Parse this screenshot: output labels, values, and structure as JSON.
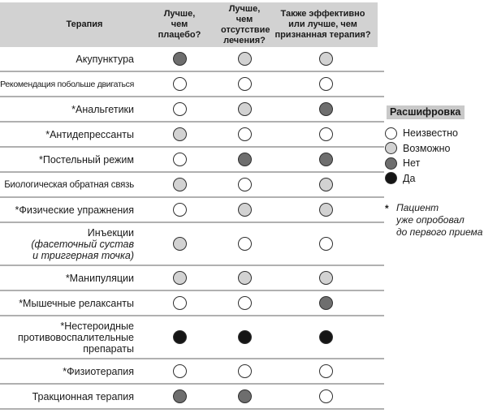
{
  "header": {
    "therapy": "Терапия",
    "col_placebo": "Лучше,\nчем\nплацебо?",
    "col_no_treatment": "Лучше, чем\nотсутствие\nлечения?",
    "col_recognized": "Также эффективно\nили лучше, чем\nпризнанная терапия?"
  },
  "rows": [
    {
      "label": [
        {
          "text": "Акупунктура"
        }
      ],
      "values": [
        "no",
        "possibly",
        "possibly"
      ]
    },
    {
      "label": [
        {
          "text": "*Рекомендация побольше двигаться"
        }
      ],
      "values": [
        "unknown",
        "unknown",
        "unknown"
      ]
    },
    {
      "label": [
        {
          "text": "*Анальгетики"
        }
      ],
      "values": [
        "unknown",
        "possibly",
        "no"
      ]
    },
    {
      "label": [
        {
          "text": "*Антидепрессанты"
        }
      ],
      "values": [
        "possibly",
        "unknown",
        "unknown"
      ]
    },
    {
      "label": [
        {
          "text": "*Постельный режим"
        }
      ],
      "values": [
        "unknown",
        "no",
        "no"
      ]
    },
    {
      "label": [
        {
          "text": "Биологическая обратная связь"
        }
      ],
      "values": [
        "possibly",
        "unknown",
        "possibly"
      ]
    },
    {
      "label": [
        {
          "text": "*Физические упражнения"
        }
      ],
      "values": [
        "unknown",
        "possibly",
        "possibly"
      ]
    },
    {
      "label": [
        {
          "text": "Инъекции"
        },
        {
          "text": "(фасеточный сустав",
          "italic": true
        },
        {
          "text": "и триггерная точка)",
          "italic": true
        }
      ],
      "values": [
        "possibly",
        "unknown",
        "unknown"
      ]
    },
    {
      "label": [
        {
          "text": "*Манипуляции"
        }
      ],
      "values": [
        "possibly",
        "possibly",
        "possibly"
      ]
    },
    {
      "label": [
        {
          "text": "*Мышечные релаксанты"
        }
      ],
      "values": [
        "unknown",
        "unknown",
        "no"
      ]
    },
    {
      "label": [
        {
          "text": "*Нестероидные"
        },
        {
          "text": "противовоспалительные"
        },
        {
          "text": "препараты"
        }
      ],
      "values": [
        "yes",
        "yes",
        "yes"
      ]
    },
    {
      "label": [
        {
          "text": "*Физиотерапия"
        }
      ],
      "values": [
        "unknown",
        "unknown",
        "unknown"
      ]
    },
    {
      "label": [
        {
          "text": "Тракционная терапия"
        }
      ],
      "values": [
        "no",
        "no",
        "unknown"
      ]
    }
  ],
  "legend": {
    "title": "Расшифровка",
    "items": [
      {
        "value": "unknown",
        "label": "Неизвестно"
      },
      {
        "value": "possibly",
        "label": "Возможно"
      },
      {
        "value": "no",
        "label": "Нет"
      },
      {
        "value": "yes",
        "label": "Да"
      }
    ],
    "footnote_marker": "*",
    "footnote_text": "Пациент\nуже опробовал\nдо первого приема"
  },
  "colors": {
    "unknown": "#ffffff",
    "possibly": "#d2d2d2",
    "no": "#6e6e6e",
    "yes": "#151515",
    "circle_border": "#2f2f2f",
    "header_bg": "#d2d2d2",
    "legend_chip_bg": "#c9c9c9",
    "divider": "#b0b0b0"
  }
}
